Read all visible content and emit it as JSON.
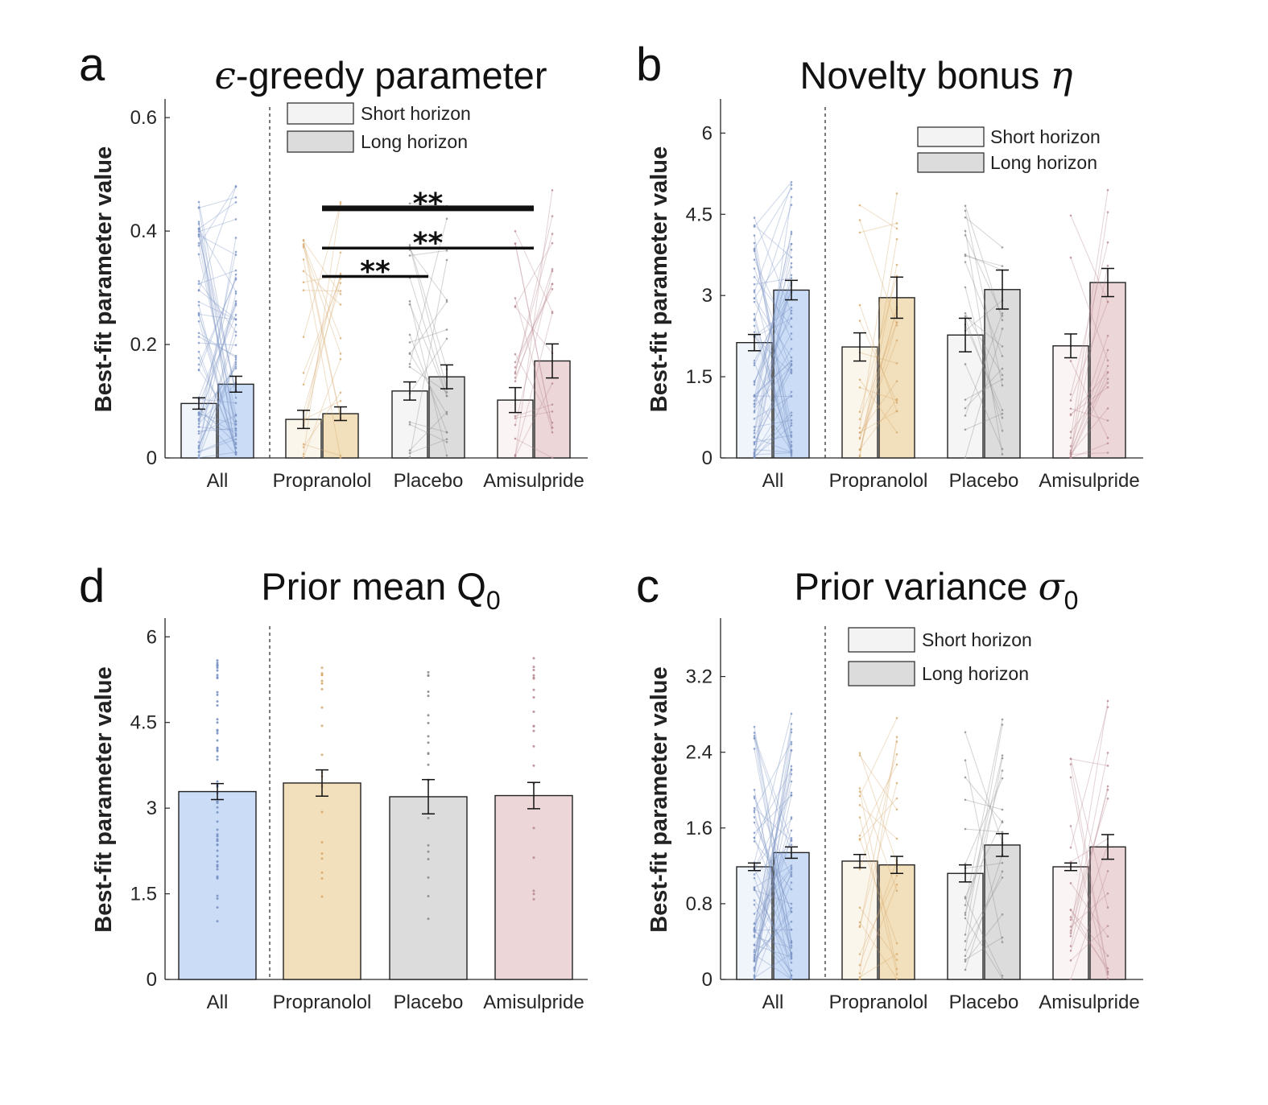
{
  "colors": {
    "All": "#7b93c4",
    "Propranolol": "#d7ab6f",
    "Placebo": "#8c8c8c",
    "Amisulpride": "#b98a92",
    "All_fill": "#cadcf6",
    "Propranolol_fill": "#f2dfbb",
    "Placebo_fill": "#dcdcdc",
    "Amisulpride_fill": "#ecd6d8"
  },
  "chart_data": [
    {
      "panel_letter": "a",
      "type": "bar",
      "title": "-greedy parameter",
      "title_symbol": "ϵ",
      "ylabel": "Best-fit parameter value",
      "ylim": [
        0,
        0.63
      ],
      "yticks": [
        0,
        0.2,
        0.4,
        0.6
      ],
      "ytick_labels": [
        "0",
        "0.2",
        "0.4",
        "0.6"
      ],
      "categories": [
        "All",
        "Propranolol",
        "Placebo",
        "Amisulpride"
      ],
      "legend": {
        "position": "top-center",
        "entries": [
          "Short horizon",
          "Long horizon"
        ]
      },
      "series": [
        {
          "name": "Short horizon",
          "values": [
            0.096,
            0.068,
            0.118,
            0.102
          ],
          "err": [
            0.01,
            0.016,
            0.016,
            0.022
          ]
        },
        {
          "name": "Long horizon",
          "values": [
            0.13,
            0.078,
            0.143,
            0.171
          ],
          "err": [
            0.014,
            0.012,
            0.021,
            0.03
          ]
        }
      ],
      "significance": [
        {
          "from": "Propranolol",
          "to": "Amisulpride",
          "y": 0.44,
          "label": "**",
          "thick": true
        },
        {
          "from": "Propranolol",
          "to": "Amisulpride",
          "y": 0.37,
          "label": "**",
          "thick": false
        },
        {
          "from": "Propranolol",
          "to": "Placebo",
          "y": 0.32,
          "label": "**",
          "thick": false
        }
      ]
    },
    {
      "panel_letter": "b",
      "type": "bar",
      "title": "Novelty bonus ",
      "title_symbol": "η",
      "ylabel": "Best-fit parameter value",
      "ylim": [
        0,
        6.6
      ],
      "yticks": [
        0,
        1.5,
        3,
        4.5,
        6
      ],
      "ytick_labels": [
        "0",
        "1.5",
        "3",
        "4.5",
        "6"
      ],
      "categories": [
        "All",
        "Propranolol",
        "Placebo",
        "Amisulpride"
      ],
      "legend": {
        "position": "top-right",
        "entries": [
          "Short horizon",
          "Long horizon"
        ]
      },
      "series": [
        {
          "name": "Short horizon",
          "values": [
            2.13,
            2.05,
            2.27,
            2.07
          ],
          "err": [
            0.15,
            0.26,
            0.31,
            0.22
          ]
        },
        {
          "name": "Long horizon",
          "values": [
            3.1,
            2.96,
            3.11,
            3.24
          ],
          "err": [
            0.18,
            0.38,
            0.36,
            0.26
          ]
        }
      ]
    },
    {
      "panel_letter": "d",
      "type": "bar",
      "title": "Prior mean Q",
      "title_subscript": "0",
      "ylabel": "Best-fit parameter value",
      "ylim": [
        0,
        6.3
      ],
      "yticks": [
        0,
        1.5,
        3,
        4.5,
        6
      ],
      "ytick_labels": [
        "0",
        "1.5",
        "3",
        "4.5",
        "6"
      ],
      "categories": [
        "All",
        "Propranolol",
        "Placebo",
        "Amisulpride"
      ],
      "series": [
        {
          "values": [
            3.29,
            3.44,
            3.2,
            3.22
          ],
          "err": [
            0.14,
            0.23,
            0.3,
            0.23
          ]
        }
      ]
    },
    {
      "panel_letter": "c",
      "type": "bar",
      "title": "Prior variance ",
      "title_symbol": "σ",
      "title_subscript": "0",
      "ylabel": "Best-fit parameter value",
      "ylim": [
        0,
        3.8
      ],
      "yticks": [
        0,
        0.8,
        1.6,
        2.4,
        3.2
      ],
      "ytick_labels": [
        "0",
        "0.8",
        "1.6",
        "2.4",
        "3.2"
      ],
      "categories": [
        "All",
        "Propranolol",
        "Placebo",
        "Amisulpride"
      ],
      "legend": {
        "position": "top-left",
        "entries": [
          "Short horizon",
          "Long horizon"
        ]
      },
      "series": [
        {
          "name": "Short horizon",
          "values": [
            1.19,
            1.25,
            1.12,
            1.19
          ],
          "err": [
            0.04,
            0.07,
            0.09,
            0.04
          ]
        },
        {
          "name": "Long horizon",
          "values": [
            1.34,
            1.21,
            1.42,
            1.4
          ],
          "err": [
            0.06,
            0.09,
            0.12,
            0.13
          ]
        }
      ]
    }
  ]
}
